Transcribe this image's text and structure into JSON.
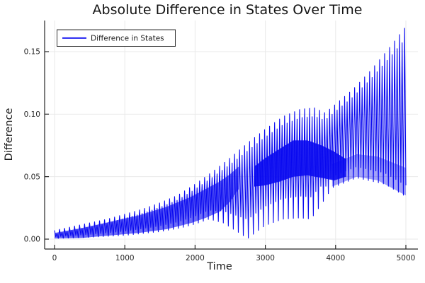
{
  "title": "Absolute Difference in States Over Time",
  "axes": {
    "xlabel": "Time",
    "ylabel": "Difference",
    "x_tick_labels": [
      "0",
      "1000",
      "2000",
      "3000",
      "4000",
      "5000"
    ],
    "x_tick_values": [
      0,
      1000,
      2000,
      3000,
      4000,
      5000
    ],
    "y_tick_labels": [
      "0.00",
      "0.05",
      "0.10",
      "0.15"
    ],
    "y_tick_values": [
      0,
      0.05,
      0.1,
      0.15
    ],
    "grid": true
  },
  "legend": {
    "label": "Difference in States",
    "position": "top-left"
  },
  "colors": {
    "series": "#0808f0",
    "grid": "#e9e9e9",
    "axis": "#262626",
    "text": "#1c1c1c",
    "background": "#ffffff"
  },
  "chart_data": {
    "type": "line",
    "title": "Absolute Difference in States Over Time",
    "xlabel": "Time",
    "ylabel": "Difference",
    "series_name": "Difference in States",
    "xlim": [
      0,
      5000
    ],
    "ylim": [
      -0.007,
      0.175
    ],
    "legend_position": "top-left",
    "grid": true,
    "description": "Rapidly oscillating absolute difference between two state trajectories; fast oscillation (period ~36 time units) fills the area between a growing upper envelope and a beating lower envelope, with a node pinch near t=2750 and dense overlap bands near t~2000 and t~3500.",
    "oscillation_period_t": 36,
    "upper_envelope": [
      [
        0,
        0.007
      ],
      [
        250,
        0.01
      ],
      [
        500,
        0.013
      ],
      [
        750,
        0.016
      ],
      [
        1000,
        0.02
      ],
      [
        1250,
        0.024
      ],
      [
        1500,
        0.029
      ],
      [
        1750,
        0.035
      ],
      [
        2000,
        0.044
      ],
      [
        2250,
        0.054
      ],
      [
        2500,
        0.065
      ],
      [
        2750,
        0.077
      ],
      [
        3000,
        0.088
      ],
      [
        3250,
        0.098
      ],
      [
        3500,
        0.104
      ],
      [
        3700,
        0.105
      ],
      [
        3850,
        0.101
      ],
      [
        4000,
        0.108
      ],
      [
        4250,
        0.12
      ],
      [
        4500,
        0.135
      ],
      [
        4750,
        0.152
      ],
      [
        5000,
        0.17
      ]
    ],
    "lower_envelope": [
      [
        0,
        0.0005
      ],
      [
        500,
        0.0015
      ],
      [
        1000,
        0.003
      ],
      [
        1500,
        0.006
      ],
      [
        1800,
        0.009
      ],
      [
        2000,
        0.012
      ],
      [
        2200,
        0.016
      ],
      [
        2400,
        0.013
      ],
      [
        2600,
        0.006
      ],
      [
        2750,
        0.0005
      ],
      [
        2900,
        0.007
      ],
      [
        3000,
        0.011
      ],
      [
        3250,
        0.016
      ],
      [
        3500,
        0.017
      ],
      [
        3650,
        0.016
      ],
      [
        3800,
        0.028
      ],
      [
        3950,
        0.041
      ],
      [
        4300,
        0.049
      ],
      [
        4700,
        0.044
      ],
      [
        5000,
        0.034
      ]
    ],
    "dense_bands": [
      {
        "opacity": 0.6,
        "points": [
          [
            0,
            0.0005,
            0.005
          ],
          [
            400,
            0.001,
            0.009
          ],
          [
            800,
            0.003,
            0.014
          ],
          [
            1200,
            0.005,
            0.019
          ],
          [
            1600,
            0.008,
            0.026
          ],
          [
            1950,
            0.013,
            0.034
          ],
          [
            2150,
            0.017,
            0.04
          ],
          [
            2350,
            0.022,
            0.046
          ],
          [
            2500,
            0.03,
            0.052
          ],
          [
            2620,
            0.04,
            0.058
          ]
        ]
      },
      {
        "opacity": 0.88,
        "points": [
          [
            2840,
            0.042,
            0.058
          ],
          [
            3000,
            0.043,
            0.065
          ],
          [
            3200,
            0.046,
            0.072
          ],
          [
            3400,
            0.05,
            0.079
          ],
          [
            3600,
            0.051,
            0.079
          ],
          [
            3800,
            0.049,
            0.075
          ],
          [
            3980,
            0.047,
            0.07
          ],
          [
            4150,
            0.05,
            0.064
          ]
        ]
      },
      {
        "opacity": 0.38,
        "points": [
          [
            3950,
            0.042,
            0.06
          ],
          [
            4300,
            0.05,
            0.068
          ],
          [
            4600,
            0.047,
            0.066
          ],
          [
            5000,
            0.035,
            0.057
          ]
        ]
      }
    ]
  }
}
